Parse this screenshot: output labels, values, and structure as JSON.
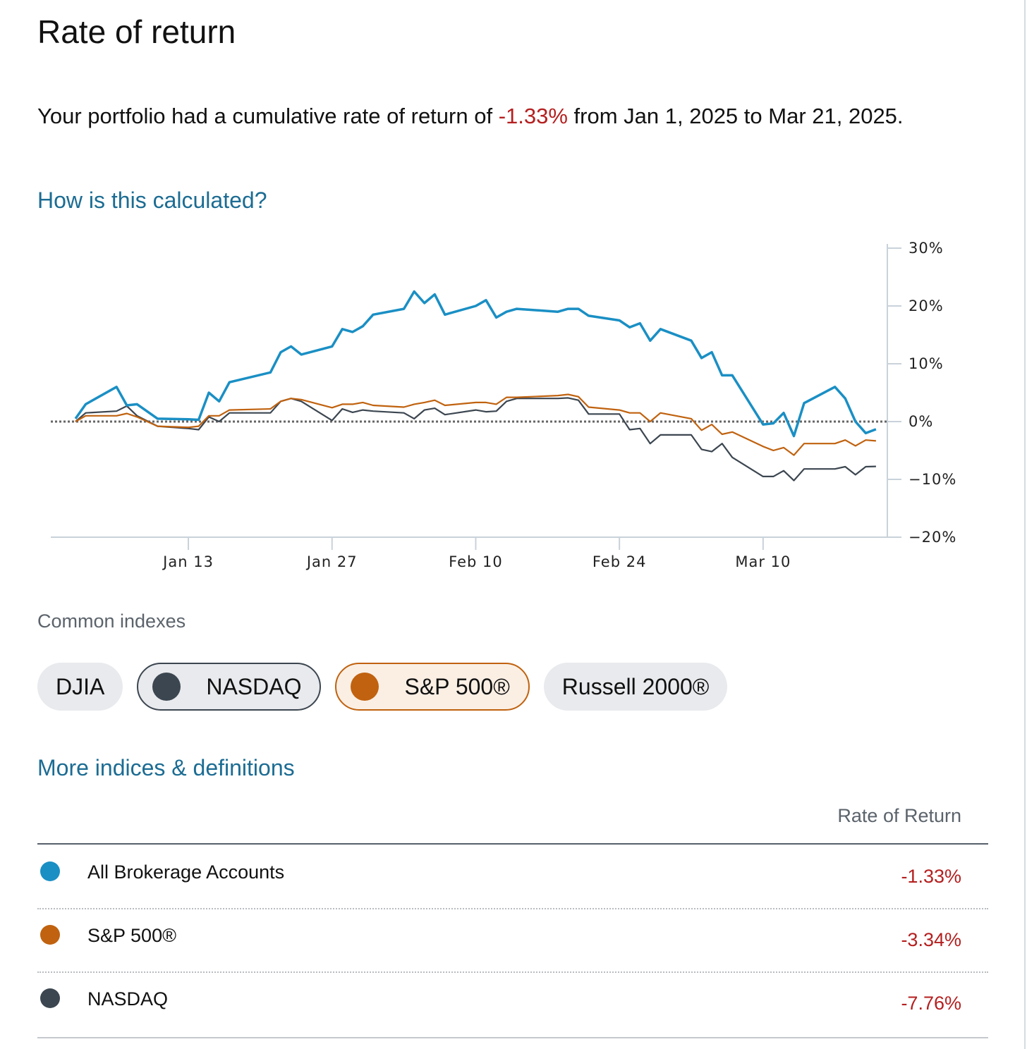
{
  "header": {
    "title": "Rate of return"
  },
  "summary": {
    "before": "Your portfolio had a cumulative rate of return of ",
    "value": "-1.33%",
    "after": " from Jan 1, 2025 to Mar 21, 2025."
  },
  "how_link": "How is this calculated?",
  "chart_data": {
    "type": "line",
    "x": [
      "Jan 2",
      "Jan 3",
      "Jan 6",
      "Jan 7",
      "Jan 8",
      "Jan 10",
      "Jan 13",
      "Jan 14",
      "Jan 15",
      "Jan 16",
      "Jan 17",
      "Jan 21",
      "Jan 22",
      "Jan 23",
      "Jan 24",
      "Jan 27",
      "Jan 28",
      "Jan 29",
      "Jan 30",
      "Jan 31",
      "Feb 3",
      "Feb 4",
      "Feb 5",
      "Feb 6",
      "Feb 7",
      "Feb 10",
      "Feb 11",
      "Feb 12",
      "Feb 13",
      "Feb 14",
      "Feb 18",
      "Feb 19",
      "Feb 20",
      "Feb 21",
      "Feb 24",
      "Feb 25",
      "Feb 26",
      "Feb 27",
      "Feb 28",
      "Mar 3",
      "Mar 4",
      "Mar 5",
      "Mar 6",
      "Mar 7",
      "Mar 10",
      "Mar 11",
      "Mar 12",
      "Mar 13",
      "Mar 14",
      "Mar 17",
      "Mar 18",
      "Mar 19",
      "Mar 20",
      "Mar 21"
    ],
    "xticks": [
      "Jan 13",
      "Jan 27",
      "Feb 10",
      "Feb 24",
      "Mar 10"
    ],
    "ylim": [
      -20,
      30
    ],
    "yticks": [
      {
        "value": 30,
        "label": "30%"
      },
      {
        "value": 20,
        "label": "20%"
      },
      {
        "value": 10,
        "label": "10%"
      },
      {
        "value": 0,
        "label": "0%"
      },
      {
        "value": -10,
        "label": "−10%"
      },
      {
        "value": -20,
        "label": "−20%"
      }
    ],
    "series": [
      {
        "name": "All Brokerage Accounts",
        "color": "#1a8fc4",
        "values": [
          0.5,
          3,
          6,
          2.8,
          3,
          0.5,
          0.4,
          0.3,
          5,
          3.5,
          6.8,
          8.5,
          12,
          13,
          11.6,
          13,
          16,
          15.5,
          16.5,
          18.5,
          19.5,
          22.5,
          20.5,
          22,
          18.5,
          20,
          21,
          18,
          19,
          19.5,
          19,
          19.5,
          19.5,
          18.3,
          17.5,
          16.3,
          17,
          14,
          16,
          14,
          11,
          12,
          8,
          8,
          -0.5,
          -0.3,
          1.5,
          -2.5,
          3.2,
          6,
          4,
          0,
          -2,
          -1.33
        ]
      },
      {
        "name": "S&P 500®",
        "color": "#c0620f",
        "values": [
          0,
          1,
          1,
          1.4,
          0.8,
          -0.8,
          -1,
          -0.8,
          1,
          1,
          2,
          2.2,
          3.5,
          4,
          3.8,
          2.4,
          3,
          3,
          3.3,
          2.8,
          2.5,
          3,
          3.3,
          3.7,
          2.8,
          3.3,
          3.3,
          3,
          4.2,
          4.2,
          4.5,
          4.7,
          4.3,
          2.5,
          2,
          1.5,
          1.5,
          0,
          1.5,
          0.5,
          -1.5,
          -0.5,
          -2.2,
          -1.8,
          -4.3,
          -5,
          -4.5,
          -5.8,
          -3.8,
          -3.8,
          -3.2,
          -4.2,
          -3.2,
          -3.34
        ]
      },
      {
        "name": "NASDAQ",
        "color": "#3c4650",
        "values": [
          0,
          1.5,
          1.8,
          2.7,
          1,
          -0.8,
          -1.2,
          -1.4,
          0.8,
          0,
          1.5,
          1.5,
          3.5,
          4,
          3.5,
          0.2,
          2.2,
          1.6,
          2,
          1.8,
          1.5,
          0.5,
          2,
          2.3,
          1.2,
          2,
          1.7,
          1.8,
          3.5,
          4,
          4,
          4.1,
          3.7,
          1.3,
          1.3,
          -1.4,
          -1.2,
          -3.8,
          -2.3,
          -2.3,
          -4.8,
          -5.2,
          -3.8,
          -6.2,
          -9.5,
          -9.5,
          -8.5,
          -10.2,
          -8.2,
          -8.2,
          -7.8,
          -9.2,
          -7.8,
          -7.76
        ]
      }
    ]
  },
  "indexes": {
    "label": "Common indexes",
    "chips": [
      {
        "label": "DJIA",
        "selected": false
      },
      {
        "label": "NASDAQ",
        "selected": true,
        "color": "#3c4650",
        "background": "#e8eaed"
      },
      {
        "label": "S&P 500®",
        "selected": true,
        "color": "#c0620f",
        "background": "#fbefe4"
      },
      {
        "label": "Russell 2000®",
        "selected": false
      }
    ]
  },
  "more_link": "More indices & definitions",
  "table": {
    "header": "Rate of Return",
    "values": [
      "-1.33%",
      "-3.34%",
      "-7.76%"
    ]
  }
}
